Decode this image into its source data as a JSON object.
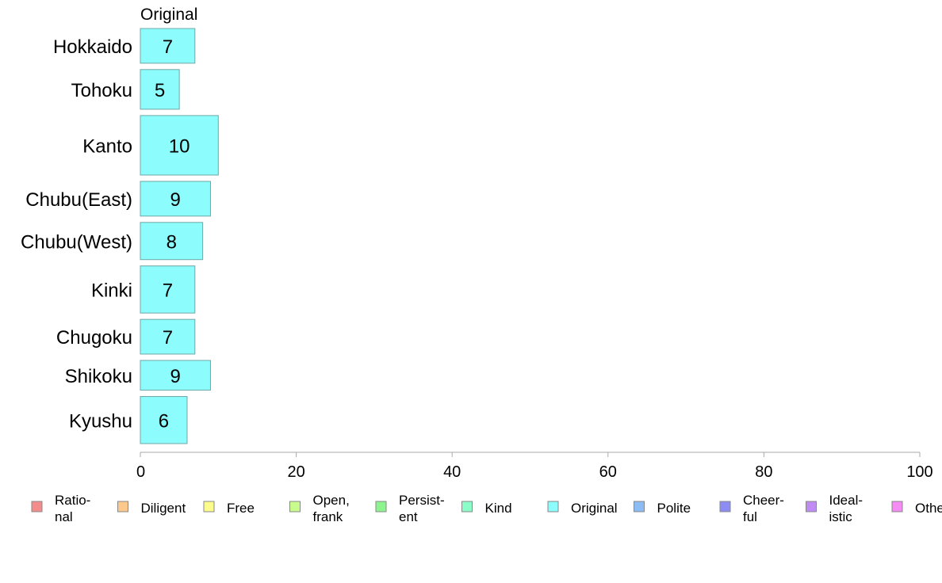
{
  "chart_data": {
    "type": "bar",
    "orientation": "horizontal",
    "panel_title": "Original",
    "categories": [
      "Hokkaido",
      "Tohoku",
      "Kanto",
      "Chubu(East)",
      "Chubu(West)",
      "Kinki",
      "Chugoku",
      "Shikoku",
      "Kyushu"
    ],
    "series": [
      {
        "name": "Original",
        "color": "#8cfcfc",
        "values": [
          7,
          5,
          10,
          9,
          8,
          7,
          7,
          9,
          6
        ]
      }
    ],
    "category_weights": [
      0.7,
      0.8,
      1.2,
      0.7,
      0.75,
      0.95,
      0.7,
      0.6,
      0.95
    ],
    "xlim": [
      0,
      100
    ],
    "xticks": [
      "0",
      "20",
      "40",
      "60",
      "80",
      "100"
    ],
    "grid": false,
    "legend_position": "bottom",
    "legend": [
      {
        "lines": [
          "Ratio-",
          "nal"
        ],
        "color": "#f58c8c"
      },
      {
        "lines": [
          "Diligent"
        ],
        "color": "#fcc88c"
      },
      {
        "lines": [
          "Free"
        ],
        "color": "#fcfc8c"
      },
      {
        "lines": [
          "Open,",
          "frank"
        ],
        "color": "#c8fc8c"
      },
      {
        "lines": [
          "Persist-",
          "ent"
        ],
        "color": "#8cf48c"
      },
      {
        "lines": [
          "Kind"
        ],
        "color": "#8cfcc8"
      },
      {
        "lines": [
          "Original"
        ],
        "color": "#8cfcfc"
      },
      {
        "lines": [
          "Polite"
        ],
        "color": "#8cbcf4"
      },
      {
        "lines": [
          "Cheer-",
          "ful"
        ],
        "color": "#8c8cf4"
      },
      {
        "lines": [
          "Ideal-",
          "istic"
        ],
        "color": "#c08cf4"
      },
      {
        "lines": [
          "Other"
        ],
        "color": "#f48cf4"
      }
    ]
  }
}
